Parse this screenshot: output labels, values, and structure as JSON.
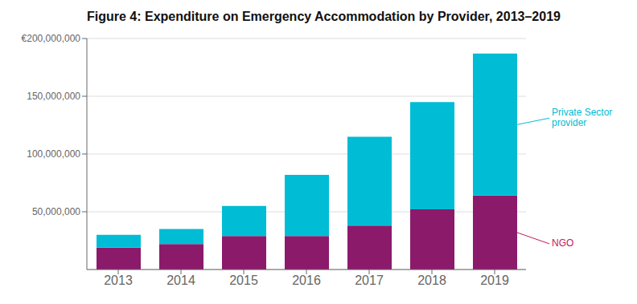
{
  "chart_data": {
    "type": "bar",
    "stacked": true,
    "title": "Figure 4: Expenditure on Emergency Accommodation by Provider, 2013–2019",
    "categories": [
      "2013",
      "2014",
      "2015",
      "2016",
      "2017",
      "2018",
      "2019"
    ],
    "series": [
      {
        "name": "NGO",
        "color": "#8B1A6B",
        "values": [
          19000000,
          22000000,
          29000000,
          29000000,
          38000000,
          52000000,
          64000000
        ]
      },
      {
        "name": "Private Sector\nprovider",
        "color": "#00BCD4",
        "values": [
          11000000,
          13000000,
          26000000,
          53000000,
          77000000,
          93000000,
          123000000
        ]
      }
    ],
    "annotations": [
      {
        "text": "Private Sector\nprovider",
        "color": "#00BCD4"
      },
      {
        "text": "NGO",
        "color": "#c2185b"
      }
    ],
    "ylim": [
      0,
      200000000
    ],
    "yticks": [
      {
        "value": 50000000,
        "label": "50,000,000"
      },
      {
        "value": 100000000,
        "label": "100,000,000"
      },
      {
        "value": 150000000,
        "label": "150,000,000"
      },
      {
        "value": 200000000,
        "label": "€200,000,000"
      }
    ],
    "grid": true
  }
}
